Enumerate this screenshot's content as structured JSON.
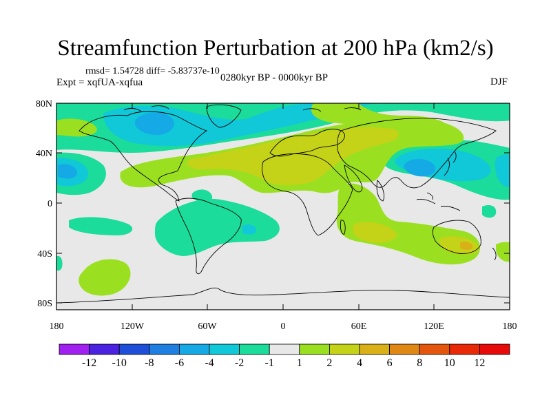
{
  "header": {
    "title": "Streamfunction Perturbation at 200 hPa (km2/s)",
    "stats": "rmsd= 1.54728 diff= -5.83737e-10",
    "expt": "Expt = xqfUA-xqfua",
    "period": "0280kyr BP - 0000kyr BP",
    "season": "DJF"
  },
  "axes": {
    "lat_labels": [
      "80N",
      "40N",
      "0",
      "40S",
      "80S"
    ],
    "lon_labels": [
      "180",
      "120W",
      "60W",
      "0",
      "60E",
      "120E",
      "180"
    ]
  },
  "colorbar": {
    "labels": [
      "-12",
      "-10",
      "-8",
      "-6",
      "-4",
      "-2",
      "-1",
      "1",
      "2",
      "4",
      "6",
      "8",
      "10",
      "12"
    ],
    "colors": [
      "#a020f0",
      "#4a22e0",
      "#1f4fd8",
      "#1e7fe0",
      "#15a9e6",
      "#10c8d8",
      "#1bdc9a",
      "#e8e8e8",
      "#9be020",
      "#c4d218",
      "#d9b018",
      "#e08814",
      "#e4560e",
      "#e82a08",
      "#e60a0a"
    ]
  },
  "palette": {
    "neutral": "#e8e8e8",
    "neg1": "#1bdc9a",
    "neg2": "#10c8d8",
    "neg3": "#15a9e6",
    "pos1": "#9be020",
    "pos2": "#c4d218",
    "pos3": "#d9b018"
  }
}
